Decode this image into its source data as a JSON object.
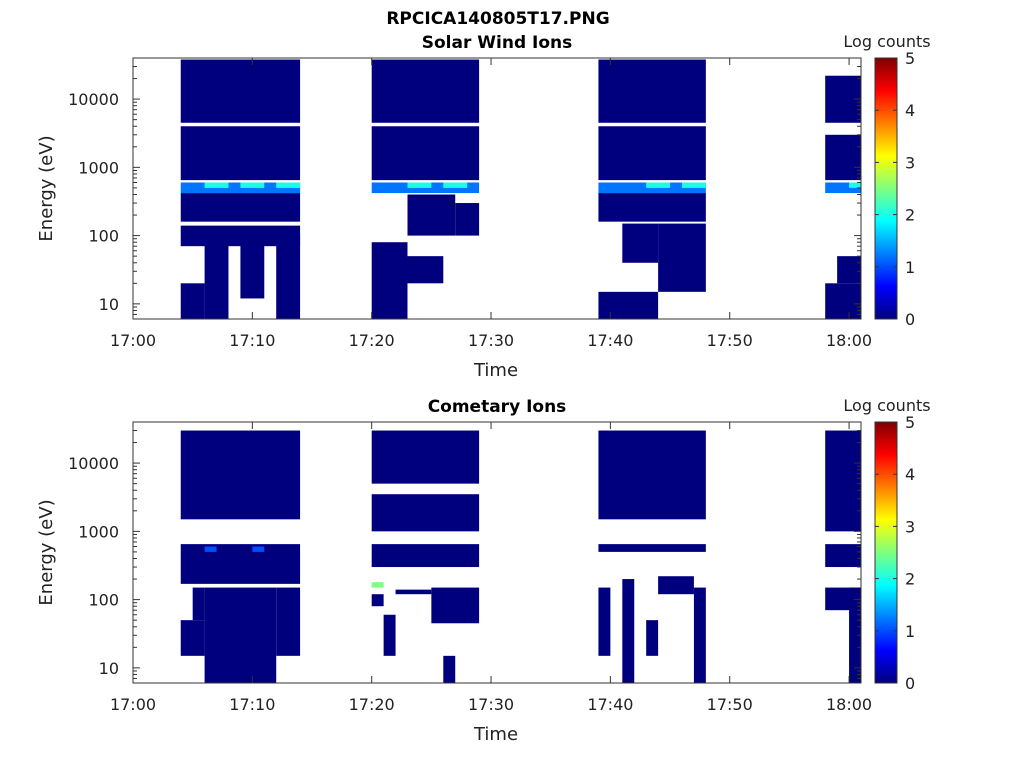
{
  "figure_title": "RPCICA140805T17.PNG",
  "colormap": [
    "#00007f",
    "#0000ff",
    "#007fff",
    "#00ffff",
    "#7fff7f",
    "#ffff00",
    "#ff7f00",
    "#ff0000",
    "#7f0000"
  ],
  "chart_data": [
    {
      "type": "heatmap",
      "title": "Solar Wind Ions",
      "xlabel": "Time",
      "ylabel": "Energy (eV)",
      "x_ticks": [
        "17:00",
        "17:10",
        "17:20",
        "17:30",
        "17:40",
        "17:50",
        "18:00"
      ],
      "xlim": [
        "17:00",
        "18:01"
      ],
      "y_scale": "log",
      "y_ticks": [
        "10",
        "100",
        "1000",
        "10000"
      ],
      "ylim": [
        6,
        40000
      ],
      "colorbar": {
        "label": "Log counts",
        "range": [
          0,
          5
        ],
        "ticks": [
          "0",
          "1",
          "2",
          "3",
          "4",
          "5"
        ]
      },
      "cells": [
        {
          "t0": "17:04",
          "t1": "17:06",
          "e0": 6,
          "e1": 20,
          "v": 0
        },
        {
          "t0": "17:06",
          "t1": "17:08",
          "e0": 6,
          "e1": 100,
          "v": 0
        },
        {
          "t0": "17:09",
          "t1": "17:11",
          "e0": 12,
          "e1": 100,
          "v": 0
        },
        {
          "t0": "17:12",
          "t1": "17:14",
          "e0": 6,
          "e1": 100,
          "v": 0
        },
        {
          "t0": "17:04",
          "t1": "17:14",
          "e0": 70,
          "e1": 140,
          "v": 0
        },
        {
          "t0": "17:04",
          "t1": "17:14",
          "e0": 160,
          "e1": 420,
          "v": 0
        },
        {
          "t0": "17:04",
          "t1": "17:14",
          "e0": 420,
          "e1": 600,
          "v": 1.2
        },
        {
          "t0": "17:06",
          "t1": "17:08",
          "e0": 500,
          "e1": 600,
          "v": 2
        },
        {
          "t0": "17:09",
          "t1": "17:11",
          "e0": 500,
          "e1": 600,
          "v": 2
        },
        {
          "t0": "17:12",
          "t1": "17:14",
          "e0": 500,
          "e1": 600,
          "v": 2
        },
        {
          "t0": "17:04",
          "t1": "17:14",
          "e0": 650,
          "e1": 4000,
          "v": 0
        },
        {
          "t0": "17:04",
          "t1": "17:14",
          "e0": 4500,
          "e1": 38000,
          "v": 0
        },
        {
          "t0": "17:20",
          "t1": "17:23",
          "e0": 6,
          "e1": 80,
          "v": 0
        },
        {
          "t0": "17:23",
          "t1": "17:26",
          "e0": 20,
          "e1": 50,
          "v": 0
        },
        {
          "t0": "17:23",
          "t1": "17:27",
          "e0": 100,
          "e1": 400,
          "v": 0
        },
        {
          "t0": "17:27",
          "t1": "17:29",
          "e0": 100,
          "e1": 300,
          "v": 0
        },
        {
          "t0": "17:20",
          "t1": "17:29",
          "e0": 420,
          "e1": 600,
          "v": 1.2
        },
        {
          "t0": "17:23",
          "t1": "17:25",
          "e0": 500,
          "e1": 600,
          "v": 2
        },
        {
          "t0": "17:26",
          "t1": "17:28",
          "e0": 500,
          "e1": 600,
          "v": 2
        },
        {
          "t0": "17:20",
          "t1": "17:29",
          "e0": 650,
          "e1": 4000,
          "v": 0
        },
        {
          "t0": "17:20",
          "t1": "17:29",
          "e0": 4500,
          "e1": 38000,
          "v": 0
        },
        {
          "t0": "17:39",
          "t1": "17:44",
          "e0": 6,
          "e1": 15,
          "v": 0
        },
        {
          "t0": "17:41",
          "t1": "17:44",
          "e0": 40,
          "e1": 150,
          "v": 0
        },
        {
          "t0": "17:44",
          "t1": "17:48",
          "e0": 15,
          "e1": 150,
          "v": 0
        },
        {
          "t0": "17:39",
          "t1": "17:48",
          "e0": 160,
          "e1": 420,
          "v": 0
        },
        {
          "t0": "17:39",
          "t1": "17:48",
          "e0": 420,
          "e1": 600,
          "v": 1.2
        },
        {
          "t0": "17:43",
          "t1": "17:45",
          "e0": 500,
          "e1": 600,
          "v": 2
        },
        {
          "t0": "17:46",
          "t1": "17:48",
          "e0": 500,
          "e1": 600,
          "v": 2
        },
        {
          "t0": "17:39",
          "t1": "17:48",
          "e0": 650,
          "e1": 4000,
          "v": 0
        },
        {
          "t0": "17:39",
          "t1": "17:48",
          "e0": 4500,
          "e1": 38000,
          "v": 0
        },
        {
          "t0": "17:58",
          "t1": "18:01",
          "e0": 6,
          "e1": 20,
          "v": 0
        },
        {
          "t0": "17:59",
          "t1": "18:01",
          "e0": 20,
          "e1": 50,
          "v": 0
        },
        {
          "t0": "17:58",
          "t1": "18:01",
          "e0": 420,
          "e1": 600,
          "v": 1.2
        },
        {
          "t0": "18:00",
          "t1": "18:01",
          "e0": 500,
          "e1": 600,
          "v": 2
        },
        {
          "t0": "17:58",
          "t1": "18:01",
          "e0": 650,
          "e1": 3000,
          "v": 0
        },
        {
          "t0": "17:58",
          "t1": "18:01",
          "e0": 4500,
          "e1": 22000,
          "v": 0
        }
      ]
    },
    {
      "type": "heatmap",
      "title": "Cometary Ions",
      "xlabel": "Time",
      "ylabel": "Energy (eV)",
      "x_ticks": [
        "17:00",
        "17:10",
        "17:20",
        "17:30",
        "17:40",
        "17:50",
        "18:00"
      ],
      "xlim": [
        "17:00",
        "18:01"
      ],
      "y_scale": "log",
      "y_ticks": [
        "10",
        "100",
        "1000",
        "10000"
      ],
      "ylim": [
        6,
        40000
      ],
      "colorbar": {
        "label": "Log counts",
        "range": [
          0,
          5
        ],
        "ticks": [
          "0",
          "1",
          "2",
          "3",
          "4",
          "5"
        ]
      },
      "cells": [
        {
          "t0": "17:04",
          "t1": "17:06",
          "e0": 15,
          "e1": 50,
          "v": 0
        },
        {
          "t0": "17:05",
          "t1": "17:06",
          "e0": 50,
          "e1": 150,
          "v": 0
        },
        {
          "t0": "17:06",
          "t1": "17:12",
          "e0": 6,
          "e1": 150,
          "v": 0
        },
        {
          "t0": "17:12",
          "t1": "17:14",
          "e0": 15,
          "e1": 150,
          "v": 0
        },
        {
          "t0": "17:04",
          "t1": "17:14",
          "e0": 170,
          "e1": 650,
          "v": 0
        },
        {
          "t0": "17:06",
          "t1": "17:07",
          "e0": 500,
          "e1": 600,
          "v": 1
        },
        {
          "t0": "17:10",
          "t1": "17:11",
          "e0": 500,
          "e1": 600,
          "v": 1
        },
        {
          "t0": "17:04",
          "t1": "17:14",
          "e0": 1500,
          "e1": 30000,
          "v": 0
        },
        {
          "t0": "17:20",
          "t1": "17:21",
          "e0": 150,
          "e1": 180,
          "v": 2.5
        },
        {
          "t0": "17:20",
          "t1": "17:21",
          "e0": 80,
          "e1": 120,
          "v": 0
        },
        {
          "t0": "17:21",
          "t1": "17:22",
          "e0": 15,
          "e1": 60,
          "v": 0
        },
        {
          "t0": "17:22",
          "t1": "17:25",
          "e0": 120,
          "e1": 140,
          "v": 0
        },
        {
          "t0": "17:25",
          "t1": "17:29",
          "e0": 45,
          "e1": 150,
          "v": 0
        },
        {
          "t0": "17:26",
          "t1": "17:27",
          "e0": 6,
          "e1": 15,
          "v": 0
        },
        {
          "t0": "17:20",
          "t1": "17:29",
          "e0": 300,
          "e1": 650,
          "v": 0
        },
        {
          "t0": "17:20",
          "t1": "17:29",
          "e0": 1000,
          "e1": 3500,
          "v": 0
        },
        {
          "t0": "17:20",
          "t1": "17:29",
          "e0": 5000,
          "e1": 30000,
          "v": 0
        },
        {
          "t0": "17:39",
          "t1": "17:40",
          "e0": 15,
          "e1": 150,
          "v": 0
        },
        {
          "t0": "17:41",
          "t1": "17:42",
          "e0": 6,
          "e1": 200,
          "v": 0
        },
        {
          "t0": "17:43",
          "t1": "17:44",
          "e0": 15,
          "e1": 50,
          "v": 0
        },
        {
          "t0": "17:44",
          "t1": "17:47",
          "e0": 120,
          "e1": 220,
          "v": 0
        },
        {
          "t0": "17:47",
          "t1": "17:48",
          "e0": 6,
          "e1": 150,
          "v": 0
        },
        {
          "t0": "17:39",
          "t1": "17:48",
          "e0": 500,
          "e1": 650,
          "v": 0
        },
        {
          "t0": "17:39",
          "t1": "17:48",
          "e0": 1500,
          "e1": 30000,
          "v": 0
        },
        {
          "t0": "17:58",
          "t1": "18:01",
          "e0": 70,
          "e1": 150,
          "v": 0
        },
        {
          "t0": "18:00",
          "t1": "18:01",
          "e0": 6,
          "e1": 150,
          "v": 0
        },
        {
          "t0": "17:58",
          "t1": "18:01",
          "e0": 300,
          "e1": 650,
          "v": 0
        },
        {
          "t0": "17:58",
          "t1": "18:01",
          "e0": 1000,
          "e1": 30000,
          "v": 0
        }
      ]
    }
  ]
}
